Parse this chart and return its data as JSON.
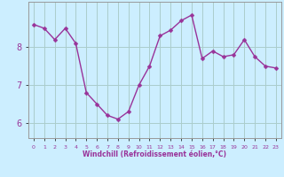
{
  "x": [
    0,
    1,
    2,
    3,
    4,
    5,
    6,
    7,
    8,
    9,
    10,
    11,
    12,
    13,
    14,
    15,
    16,
    17,
    18,
    19,
    20,
    21,
    22,
    23
  ],
  "y": [
    8.6,
    8.5,
    8.2,
    8.5,
    8.1,
    6.8,
    6.5,
    6.2,
    6.1,
    6.3,
    7.0,
    7.5,
    8.3,
    8.45,
    8.7,
    8.85,
    7.7,
    7.9,
    7.75,
    7.8,
    8.2,
    7.75,
    7.5,
    7.45
  ],
  "line_color": "#993399",
  "marker_color": "#993399",
  "bg_color": "#cceeff",
  "grid_color": "#aacccc",
  "spine_color": "#999999",
  "xlabel": "Windchill (Refroidissement éolien,°C)",
  "xlabel_color": "#993399",
  "tick_color": "#993399",
  "yticks": [
    6,
    7,
    8
  ],
  "ylim": [
    5.6,
    9.2
  ],
  "xlim": [
    -0.5,
    23.5
  ],
  "xticks": [
    0,
    1,
    2,
    3,
    4,
    5,
    6,
    7,
    8,
    9,
    10,
    11,
    12,
    13,
    14,
    15,
    16,
    17,
    18,
    19,
    20,
    21,
    22,
    23
  ],
  "line_width": 1.0,
  "marker_size": 2.5
}
